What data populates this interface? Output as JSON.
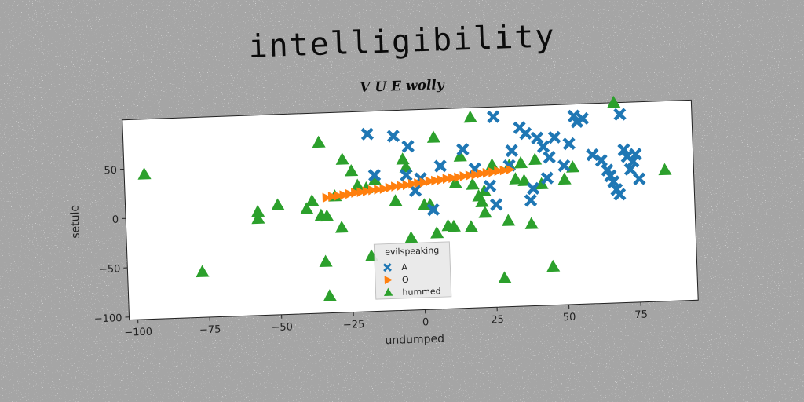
{
  "title": "intelligibility",
  "subtitle": "V U E wolly",
  "chart_data": {
    "type": "scatter",
    "xlabel": "undumped",
    "ylabel": "setule",
    "xlim": [
      -103,
      95
    ],
    "ylim": [
      -103,
      100
    ],
    "xticks": [
      -100,
      -75,
      -50,
      -25,
      0,
      25,
      50,
      75
    ],
    "yticks": [
      -100,
      -50,
      0,
      50
    ],
    "grid": false,
    "legend": {
      "title": "evilspeaking",
      "placement": "lower-center"
    },
    "series": [
      {
        "name": "A",
        "marker": "x",
        "color": "#1f77b4",
        "points": [
          [
            -18,
            77
          ],
          [
            -9,
            74
          ],
          [
            -4,
            63
          ],
          [
            7,
            42
          ],
          [
            15,
            58
          ],
          [
            26,
            90
          ],
          [
            32,
            55
          ],
          [
            35,
            78
          ],
          [
            37,
            72
          ],
          [
            41,
            67
          ],
          [
            43,
            58
          ],
          [
            45,
            47
          ],
          [
            47,
            67
          ],
          [
            50,
            38
          ],
          [
            52,
            60
          ],
          [
            54,
            88
          ],
          [
            55,
            82
          ],
          [
            57,
            85
          ],
          [
            60,
            48
          ],
          [
            63,
            42
          ],
          [
            65,
            32
          ],
          [
            66,
            26
          ],
          [
            67,
            20
          ],
          [
            68,
            12
          ],
          [
            69,
            7
          ],
          [
            70,
            88
          ],
          [
            71,
            52
          ],
          [
            72,
            45
          ],
          [
            73,
            32
          ],
          [
            74,
            40
          ],
          [
            75,
            47
          ],
          [
            76,
            22
          ],
          [
            19,
            38
          ],
          [
            24,
            20
          ],
          [
            26,
            1
          ],
          [
            31,
            40
          ],
          [
            -16,
            35
          ],
          [
            -5,
            34
          ],
          [
            0,
            30
          ],
          [
            4,
            -2
          ],
          [
            38,
            4
          ],
          [
            44,
            26
          ],
          [
            39,
            16
          ],
          [
            -2,
            18
          ]
        ]
      },
      {
        "name": "O",
        "marker": "triangle-right",
        "color": "#ff7f0e",
        "points": [
          [
            -33,
            14
          ],
          [
            -31,
            15
          ],
          [
            -29,
            15.5
          ],
          [
            -27,
            16
          ],
          [
            -25,
            17
          ],
          [
            -23,
            18
          ],
          [
            -21,
            18.5
          ],
          [
            -19,
            19
          ],
          [
            -17,
            20
          ],
          [
            -15,
            20.5
          ],
          [
            -13,
            21
          ],
          [
            -11,
            22
          ],
          [
            -9,
            23
          ],
          [
            -7,
            23.5
          ],
          [
            -5,
            24
          ],
          [
            -3,
            25
          ],
          [
            -1,
            25.5
          ],
          [
            1,
            26
          ],
          [
            3,
            27
          ],
          [
            5,
            27.5
          ],
          [
            7,
            28
          ],
          [
            9,
            29
          ],
          [
            11,
            29.5
          ],
          [
            13,
            30
          ],
          [
            15,
            31
          ],
          [
            17,
            31.5
          ],
          [
            19,
            32
          ],
          [
            21,
            33
          ],
          [
            23,
            33.5
          ],
          [
            25,
            34
          ],
          [
            27,
            35
          ],
          [
            29,
            35.5
          ],
          [
            31,
            36
          ]
        ]
      },
      {
        "name": "hummed",
        "marker": "triangle-up",
        "color": "#2ca02c",
        "points": [
          [
            -96,
            44
          ],
          [
            -77,
            -57
          ],
          [
            -57,
            2
          ],
          [
            -57,
            -5
          ],
          [
            -50,
            8
          ],
          [
            -40,
            3
          ],
          [
            -38,
            11
          ],
          [
            -35,
            -4
          ],
          [
            -34,
            -51
          ],
          [
            -33,
            -86
          ],
          [
            -33,
            -5
          ],
          [
            -30,
            15
          ],
          [
            -35,
            70
          ],
          [
            -27,
            52
          ],
          [
            -24,
            40
          ],
          [
            -22,
            25
          ],
          [
            -19,
            22
          ],
          [
            -18,
            -47
          ],
          [
            -16,
            30
          ],
          [
            -9,
            8
          ],
          [
            -6,
            50
          ],
          [
            -5,
            42
          ],
          [
            -4,
            -30
          ],
          [
            1,
            3
          ],
          [
            3,
            3
          ],
          [
            5,
            -26
          ],
          [
            5,
            71
          ],
          [
            9,
            -19
          ],
          [
            11,
            -20
          ],
          [
            14,
            51
          ],
          [
            17,
            -21
          ],
          [
            18,
            22
          ],
          [
            18,
            90
          ],
          [
            20,
            10
          ],
          [
            21,
            4
          ],
          [
            22,
            -7
          ],
          [
            22,
            15
          ],
          [
            25,
            41
          ],
          [
            28,
            -74
          ],
          [
            30,
            -16
          ],
          [
            31,
            40
          ],
          [
            33,
            26
          ],
          [
            35,
            42
          ],
          [
            36,
            24
          ],
          [
            38,
            -20
          ],
          [
            40,
            45
          ],
          [
            42,
            20
          ],
          [
            45,
            -64
          ],
          [
            50,
            24
          ],
          [
            53,
            36
          ],
          [
            68,
            100
          ],
          [
            85,
            30
          ],
          [
            -28,
            -17
          ],
          [
            12,
            24
          ]
        ]
      }
    ]
  }
}
